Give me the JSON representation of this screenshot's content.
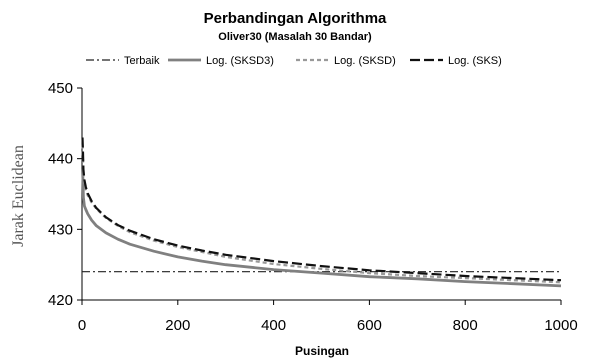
{
  "chart_data": {
    "type": "line",
    "title": "Perbandingan Algorithma",
    "subtitle": "Oliver30 (Masalah 30 Bandar)",
    "xlabel": "Pusingan",
    "ylabel": "Jarak Euclidean",
    "xlim": [
      0,
      1000
    ],
    "ylim": [
      420,
      450
    ],
    "xticks": [
      0,
      200,
      400,
      600,
      800,
      1000
    ],
    "yticks": [
      420,
      430,
      440,
      450
    ],
    "grid": false,
    "legend_position": "top",
    "series": [
      {
        "name": "Terbaik",
        "style": "dash-dot",
        "color": "#222222",
        "x": [
          0,
          1000
        ],
        "y": [
          424,
          424
        ]
      },
      {
        "name": "Log. (SKSD3)",
        "style": "solid",
        "color": "#808080",
        "x": [
          1,
          2,
          3,
          5,
          8,
          12,
          20,
          30,
          50,
          75,
          100,
          150,
          200,
          250,
          300,
          400,
          500,
          600,
          700,
          800,
          900,
          1000
        ],
        "y": [
          438.5,
          436.8,
          434.5,
          433.3,
          432.8,
          432.2,
          431.3,
          430.5,
          429.5,
          428.6,
          427.9,
          426.9,
          426.1,
          425.5,
          425.0,
          424.3,
          423.8,
          423.3,
          423.0,
          422.6,
          422.3,
          422.0
        ]
      },
      {
        "name": "Log. (SKSD)",
        "style": "dashed-short",
        "color": "#999999",
        "x": [
          1,
          2,
          3,
          5,
          8,
          12,
          20,
          30,
          50,
          75,
          100,
          150,
          200,
          250,
          300,
          400,
          500,
          600,
          700,
          800,
          900,
          1000
        ],
        "y": [
          442.0,
          440.0,
          437.8,
          436.5,
          435.6,
          434.8,
          433.8,
          432.9,
          431.6,
          430.5,
          429.6,
          428.4,
          427.5,
          426.8,
          426.1,
          425.1,
          424.4,
          423.8,
          423.4,
          423.1,
          422.8,
          422.5
        ]
      },
      {
        "name": "Log. (SKS)",
        "style": "dashed-long",
        "color": "#111111",
        "x": [
          1,
          2,
          3,
          5,
          8,
          12,
          20,
          30,
          50,
          75,
          100,
          150,
          200,
          250,
          300,
          400,
          500,
          600,
          700,
          800,
          900,
          1000
        ],
        "y": [
          443.0,
          440.8,
          438.5,
          437.0,
          436.0,
          435.1,
          434.0,
          433.0,
          431.7,
          430.6,
          429.8,
          428.6,
          427.7,
          427.0,
          426.4,
          425.5,
          424.8,
          424.2,
          423.8,
          423.4,
          423.1,
          422.8
        ]
      }
    ]
  }
}
